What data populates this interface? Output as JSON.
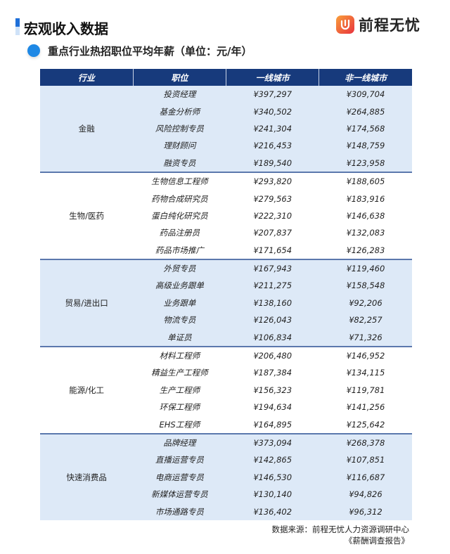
{
  "header": {
    "title": "宏观收入数据",
    "logo_text": "前程无忧",
    "accent": "#1e6fd9"
  },
  "subtitle": "重点行业热招职位平均年薪（单位：元/年）",
  "table": {
    "columns": [
      "行业",
      "职位",
      "一线城市",
      "非一线城市"
    ],
    "sections": [
      {
        "industry": "金融",
        "rows": [
          [
            "投资经理",
            "¥397,297",
            "¥309,704"
          ],
          [
            "基金分析师",
            "¥340,502",
            "¥264,885"
          ],
          [
            "风险控制专员",
            "¥241,304",
            "¥174,568"
          ],
          [
            "理财顾问",
            "¥216,453",
            "¥148,759"
          ],
          [
            "融资专员",
            "¥189,540",
            "¥123,958"
          ]
        ]
      },
      {
        "industry": "生物/医药",
        "rows": [
          [
            "生物信息工程师",
            "¥293,820",
            "¥188,605"
          ],
          [
            "药物合成研究员",
            "¥279,563",
            "¥183,916"
          ],
          [
            "蛋白纯化研究员",
            "¥222,310",
            "¥146,638"
          ],
          [
            "药品注册员",
            "¥207,837",
            "¥132,083"
          ],
          [
            "药品市场推广",
            "¥171,654",
            "¥126,283"
          ]
        ]
      },
      {
        "industry": "贸易/进出口",
        "rows": [
          [
            "外贸专员",
            "¥167,943",
            "¥119,460"
          ],
          [
            "高级业务跟单",
            "¥211,275",
            "¥158,548"
          ],
          [
            "业务跟单",
            "¥138,160",
            "¥92,206"
          ],
          [
            "物流专员",
            "¥126,043",
            "¥82,257"
          ],
          [
            "单证员",
            "¥106,834",
            "¥71,326"
          ]
        ]
      },
      {
        "industry": "能源/化工",
        "rows": [
          [
            "材料工程师",
            "¥206,480",
            "¥146,952"
          ],
          [
            "精益生产工程师",
            "¥187,384",
            "¥134,115"
          ],
          [
            "生产工程师",
            "¥156,323",
            "¥119,781"
          ],
          [
            "环保工程师",
            "¥194,634",
            "¥141,256"
          ],
          [
            "EHS工程师",
            "¥164,895",
            "¥125,642"
          ]
        ]
      },
      {
        "industry": "快速消费品",
        "rows": [
          [
            "品牌经理",
            "¥373,094",
            "¥268,378"
          ],
          [
            "直播运营专员",
            "¥142,865",
            "¥107,851"
          ],
          [
            "电商运营专员",
            "¥146,530",
            "¥116,687"
          ],
          [
            "新媒体运营专员",
            "¥130,140",
            "¥94,826"
          ],
          [
            "市场通路专员",
            "¥136,402",
            "¥96,312"
          ]
        ]
      }
    ]
  },
  "source": {
    "line1": "数据来源：前程无忧人力资源调研中心",
    "line2": "《薪酬调查报告》"
  }
}
